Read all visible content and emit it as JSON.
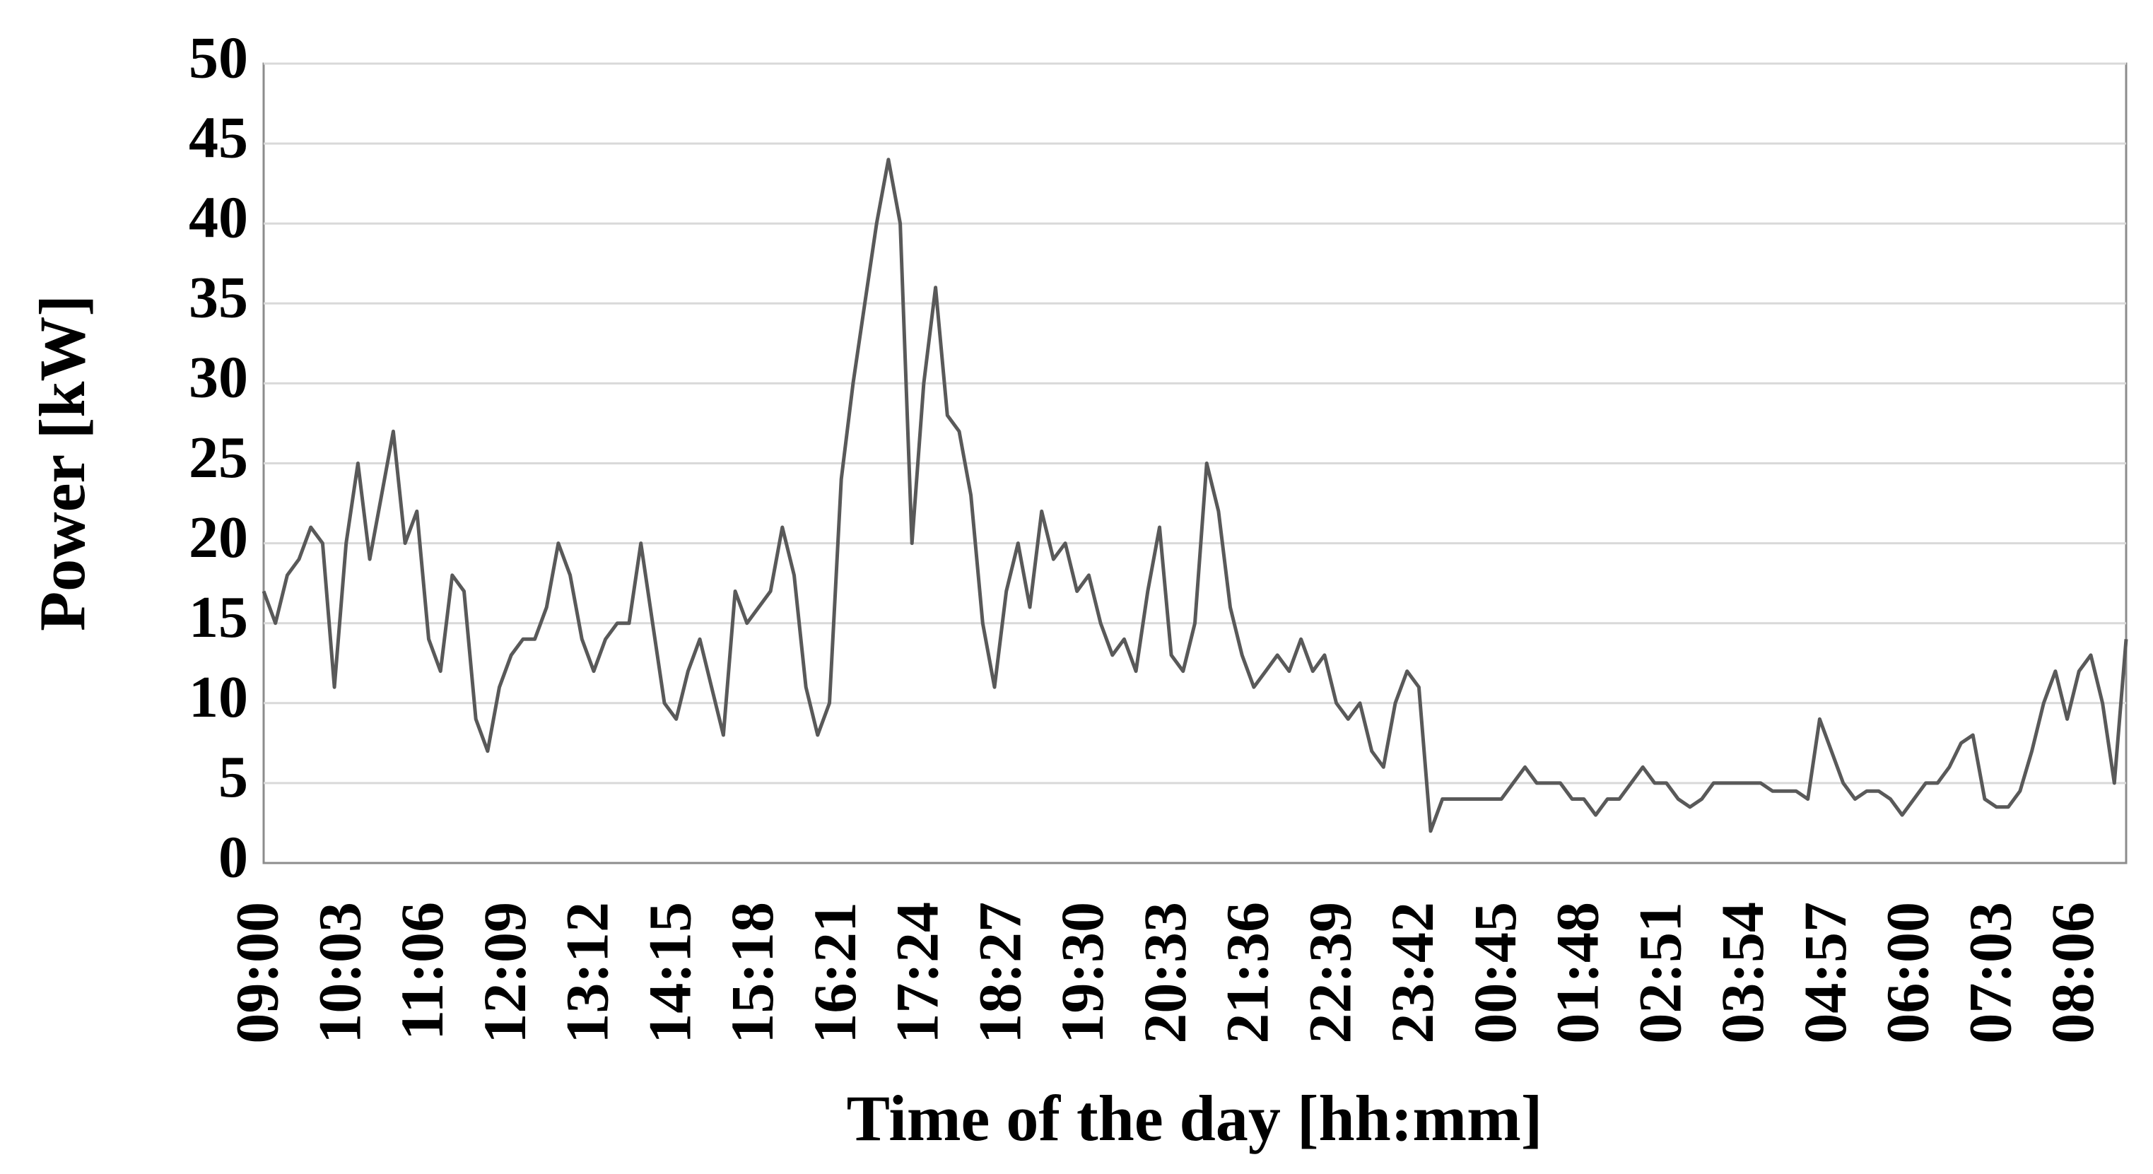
{
  "chart_data": {
    "type": "line",
    "ylabel": "Power [kW]",
    "xlabel": "Time of the day [hh:mm]",
    "categories": [
      "09:00",
      null,
      null,
      null,
      null,
      null,
      null,
      "10:03",
      null,
      null,
      null,
      null,
      null,
      null,
      "11:06",
      null,
      null,
      null,
      null,
      null,
      null,
      "12:09",
      null,
      null,
      null,
      null,
      null,
      null,
      "13:12",
      null,
      null,
      null,
      null,
      null,
      null,
      "14:15",
      null,
      null,
      null,
      null,
      null,
      null,
      "15:18",
      null,
      null,
      null,
      null,
      null,
      null,
      "16:21",
      null,
      null,
      null,
      null,
      null,
      null,
      "17:24",
      null,
      null,
      null,
      null,
      null,
      null,
      "18:27",
      null,
      null,
      null,
      null,
      null,
      null,
      "19:30",
      null,
      null,
      null,
      null,
      null,
      null,
      "20:33",
      null,
      null,
      null,
      null,
      null,
      null,
      "21:36",
      null,
      null,
      null,
      null,
      null,
      null,
      "22:39",
      null,
      null,
      null,
      null,
      null,
      null,
      "23:42",
      null,
      null,
      null,
      null,
      null,
      null,
      "00:45",
      null,
      null,
      null,
      null,
      null,
      null,
      "01:48",
      null,
      null,
      null,
      null,
      null,
      null,
      "02:51",
      null,
      null,
      null,
      null,
      null,
      null,
      "03:54",
      null,
      null,
      null,
      null,
      null,
      null,
      "04:57",
      null,
      null,
      null,
      null,
      null,
      null,
      "06:00",
      null,
      null,
      null,
      null,
      null,
      null,
      "07:03",
      null,
      null,
      null,
      null,
      null,
      null,
      "08:06",
      null,
      null,
      null,
      null
    ],
    "values": [
      17,
      15,
      18,
      19,
      21,
      20,
      11,
      20,
      25,
      19,
      23,
      27,
      20,
      22,
      14,
      12,
      18,
      17,
      9,
      7,
      11,
      13,
      14,
      14,
      16,
      20,
      18,
      14,
      12,
      14,
      15,
      15,
      20,
      15,
      10,
      9,
      12,
      14,
      11,
      8,
      17,
      15,
      16,
      17,
      21,
      18,
      11,
      8,
      10,
      24,
      30,
      35,
      40,
      44,
      40,
      20,
      30,
      36,
      28,
      27,
      23,
      15,
      11,
      17,
      20,
      16,
      22,
      19,
      20,
      17,
      18,
      15,
      13,
      14,
      12,
      17,
      21,
      13,
      12,
      15,
      25,
      22,
      16,
      13,
      11,
      12,
      13,
      12,
      14,
      12,
      13,
      10,
      9,
      10,
      7,
      6,
      10,
      12,
      11,
      2,
      4,
      4,
      4,
      4,
      4,
      4,
      5,
      6,
      5,
      5,
      5,
      4,
      4,
      3,
      4,
      4,
      5,
      6,
      5,
      5,
      4,
      3.5,
      4,
      5,
      5,
      5,
      5,
      5,
      4.5,
      4.5,
      4.5,
      4,
      9,
      7,
      5,
      4,
      4.5,
      4.5,
      4,
      3,
      4,
      5,
      5,
      6,
      7.5,
      8,
      4,
      3.5,
      3.5,
      4.5,
      7,
      10,
      12,
      9,
      12,
      13,
      10,
      5,
      14
    ],
    "color": "#595959",
    "ylim": [
      0,
      50
    ],
    "yticks": [
      0,
      5,
      10,
      15,
      20,
      25,
      30,
      35,
      40,
      45,
      50
    ],
    "grid": true
  }
}
